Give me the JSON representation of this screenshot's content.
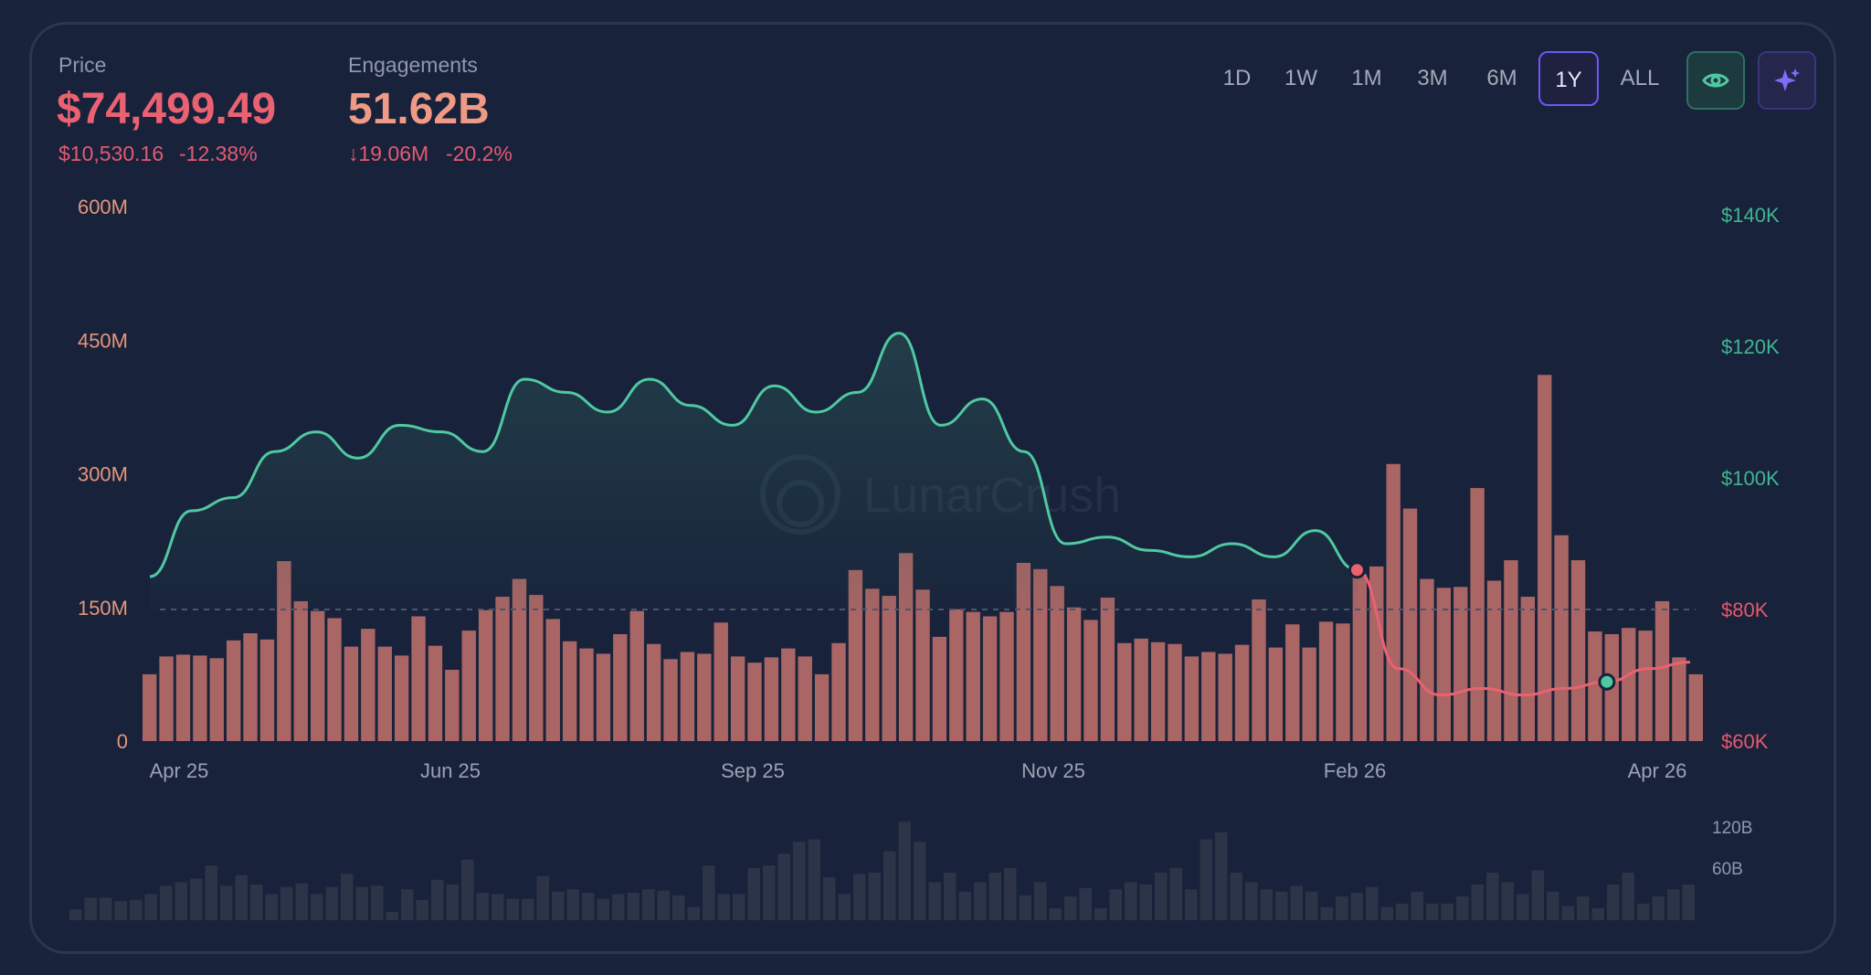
{
  "header": {
    "price_label": "Price",
    "price_value": "$74,499.49",
    "price_change": "$10,530.16",
    "price_change_pct": "-12.38%",
    "engagements_label": "Engagements",
    "engagements_value": "51.62B",
    "engagements_change": "↓19.06M",
    "engagements_change_pct": "-20.2%"
  },
  "timeframes": [
    "1D",
    "1W",
    "1M",
    "3M",
    "6M",
    "1Y",
    "ALL"
  ],
  "active_timeframe": "1Y",
  "icons": {
    "eye_button": "eye-icon",
    "ai_button": "sparkle-icon"
  },
  "colors": {
    "price_up": "#4fc9a2",
    "price_down": "#ea6272",
    "bar": "#c4716d",
    "mini_bar": "#2d3447",
    "left_axis": "#e5967b",
    "right_axis_top": "#41b592",
    "right_axis_bottom": "#e5586d",
    "background": "#18223a"
  },
  "watermark": "LunarCrush",
  "chart_data": [
    {
      "type": "bar",
      "series": [
        {
          "name": "Engagements",
          "axis": "left",
          "values": [
            75,
            95,
            97,
            96,
            93,
            113,
            121,
            114,
            202,
            157,
            146,
            138,
            106,
            126,
            106,
            96,
            140,
            107,
            80,
            124,
            147,
            162,
            182,
            164,
            137,
            112,
            104,
            98,
            120,
            146,
            109,
            92,
            100,
            98,
            133,
            95,
            88,
            94,
            104,
            95,
            75,
            110,
            192,
            171,
            163,
            211,
            170,
            117,
            148,
            145,
            140,
            145,
            200,
            193,
            174,
            150,
            136,
            161,
            110,
            115,
            111,
            109,
            95,
            100,
            98,
            108,
            159,
            105,
            131,
            105,
            134,
            132,
            187,
            196,
            311,
            261,
            182,
            172,
            173,
            284,
            180,
            203,
            162,
            411,
            231,
            203,
            123,
            120,
            127,
            124,
            157,
            94,
            75
          ]
        },
        {
          "name": "Price",
          "axis": "right",
          "x": [
            "Apr 25",
            "Apr 25",
            "May 25",
            "May 25",
            "May 25",
            "Jun 25",
            "Jun 25",
            "Jun 25",
            "Jul 25",
            "Jul 25",
            "Jul 25",
            "Aug 25",
            "Aug 25",
            "Aug 25",
            "Sep 25",
            "Sep 25",
            "Sep 25",
            "Oct 25",
            "Oct 25",
            "Oct 25",
            "Oct 25",
            "Nov 25",
            "Nov 25",
            "Nov 25",
            "Dec 25",
            "Dec 25",
            "Dec 25",
            "Jan 26",
            "Jan 26",
            "Jan 26",
            "Feb 26",
            "Feb 26",
            "Feb 26",
            "Mar 26",
            "Mar 26",
            "Mar 26",
            "Apr 26",
            "Apr 26"
          ],
          "values": [
            85000,
            95000,
            97000,
            104000,
            107000,
            103000,
            108000,
            107000,
            104000,
            115000,
            113000,
            110000,
            115000,
            111000,
            108000,
            114000,
            110000,
            113000,
            122000,
            108000,
            112000,
            104000,
            90000,
            91000,
            89000,
            88000,
            90000,
            88000,
            92000,
            86000,
            71000,
            67000,
            68000,
            67000,
            68000,
            69000,
            71000,
            72000
          ]
        }
      ],
      "y_left_ticks": [
        "0",
        "150M",
        "300M",
        "450M",
        "600M"
      ],
      "y_right_ticks": [
        "$60K",
        "$80K",
        "$100K",
        "$120K",
        "$140K"
      ],
      "ylim_left": [
        0,
        600000000
      ],
      "ylim_right": [
        60000,
        140000
      ],
      "x_ticks": [
        "Apr 25",
        "Jun 25",
        "Sep 25",
        "Nov 25",
        "Feb 26",
        "Apr 26"
      ],
      "reference_line": 80000,
      "grid": false
    },
    {
      "type": "bar",
      "title": "",
      "values": [
        9,
        19,
        19,
        16,
        17,
        22,
        29,
        32,
        35,
        46,
        29,
        38,
        30,
        22,
        28,
        31,
        22,
        28,
        39,
        28,
        29,
        7,
        26,
        17,
        34,
        30,
        51,
        23,
        22,
        18,
        18,
        37,
        24,
        26,
        23,
        18,
        22,
        23,
        26,
        25,
        21,
        11,
        46,
        22,
        22,
        44,
        46,
        56,
        66,
        68,
        36,
        22,
        39,
        40,
        58,
        83,
        66,
        32,
        40,
        24,
        32,
        40,
        44,
        21,
        32,
        10,
        20,
        27,
        10,
        26,
        32,
        30,
        40,
        44,
        26,
        68,
        74,
        40,
        32,
        26,
        24,
        29,
        24,
        11,
        20,
        23,
        28,
        11,
        14,
        24,
        14,
        14,
        20,
        30,
        40,
        32,
        22,
        42,
        24,
        12,
        20,
        10,
        30,
        40,
        14,
        20,
        26,
        30
      ]
    }
  ],
  "mini_chart": {
    "y_ticks": [
      "120B",
      "60B"
    ]
  }
}
